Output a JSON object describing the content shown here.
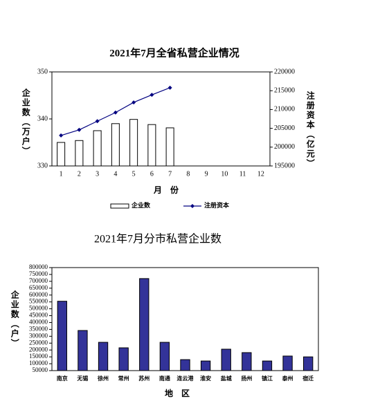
{
  "chart_data": [
    {
      "type": "bar",
      "title": "2021年7月全省私营企业情况",
      "ylabel": "企业数（万户）",
      "y2label": "注册资本（亿元）",
      "xlabel": "月　份",
      "categories": [
        1,
        2,
        3,
        4,
        5,
        6,
        7,
        8,
        9,
        10,
        11,
        12
      ],
      "series": [
        {
          "name": "企业数",
          "type": "bar",
          "color": "#ffffff",
          "values": [
            335.0,
            335.4,
            337.5,
            339.0,
            339.9,
            338.8,
            338.1,
            null,
            null,
            null,
            null,
            null
          ]
        },
        {
          "name": "注册资本",
          "type": "line",
          "axis": "y2",
          "color": "#000080",
          "values": [
            203100,
            204600,
            206900,
            209200,
            211900,
            213900,
            215800,
            null,
            null,
            null,
            null,
            null
          ]
        }
      ],
      "ylim": [
        330,
        350
      ],
      "yticks": [
        330,
        340,
        350
      ],
      "y2lim": [
        195000,
        220000
      ],
      "y2ticks": [
        195000,
        200000,
        205000,
        210000,
        215000,
        220000
      ],
      "legend": "bottom"
    },
    {
      "type": "bar",
      "title": "2021年7月分市私营企业数",
      "ylabel": "企业数（户）",
      "xlabel": "地　区",
      "categories": [
        "南京",
        "无锡",
        "徐州",
        "常州",
        "苏州",
        "南通",
        "连云港",
        "淮安",
        "盐城",
        "扬州",
        "镇江",
        "泰州",
        "宿迁"
      ],
      "series": [
        {
          "type": "bar",
          "color": "#333399",
          "values": [
            555000,
            342000,
            256000,
            216000,
            720000,
            256000,
            130000,
            120000,
            206000,
            181000,
            120000,
            156000,
            150000
          ]
        }
      ],
      "ylim": [
        50000,
        800000
      ],
      "yticks": [
        50000,
        100000,
        150000,
        200000,
        250000,
        300000,
        350000,
        400000,
        450000,
        500000,
        550000,
        600000,
        650000,
        700000,
        750000,
        800000
      ]
    }
  ]
}
